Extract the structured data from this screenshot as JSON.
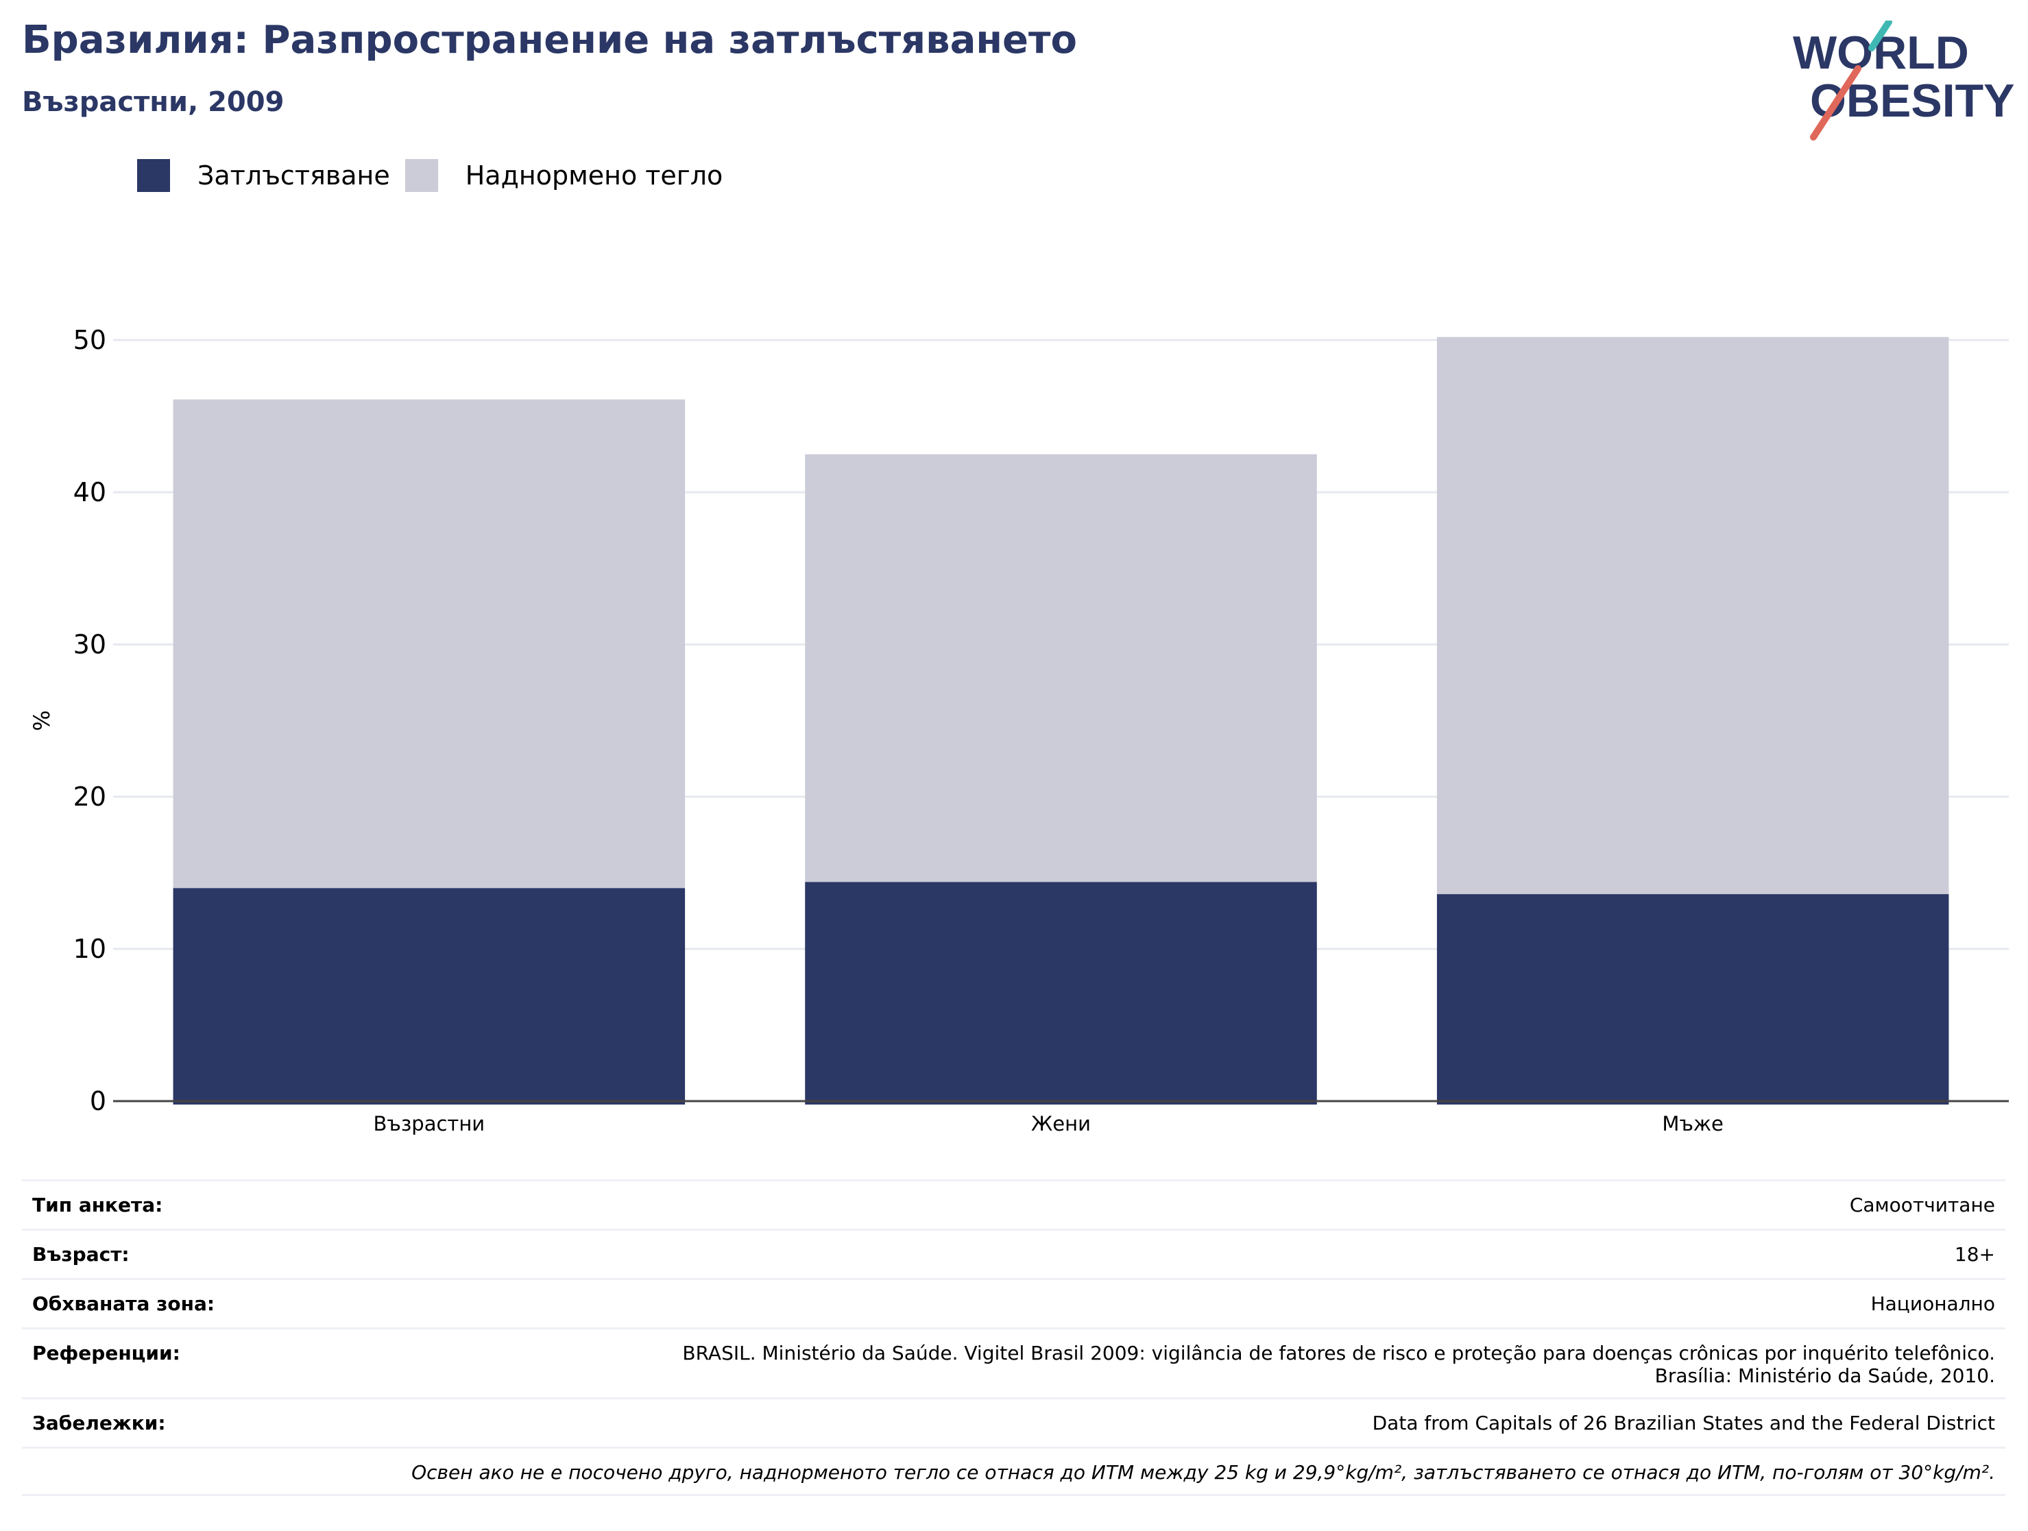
{
  "title": "Бразилия: Разпространение на затлъстяването",
  "subtitle": "Възрастни, 2009",
  "logo": {
    "line1": "WORLD",
    "line2": "OBESITY",
    "colors": {
      "text": "#2b3765",
      "teal": "#3fb8b4",
      "coral": "#e0685a"
    }
  },
  "legend": [
    {
      "label": "Затлъстяване",
      "color": "#2b3765"
    },
    {
      "label": "Наднормено тегло",
      "color": "#cbccd8"
    }
  ],
  "chart_data": {
    "type": "bar",
    "stacked": true,
    "categories": [
      "Възрастни",
      "Жени",
      "Мъже"
    ],
    "series": [
      {
        "name": "Затлъстяване",
        "color": "#2b3765",
        "values": [
          14.0,
          14.4,
          13.6
        ]
      },
      {
        "name": "Наднормено тегло",
        "color": "#cbccd8",
        "values": [
          32.1,
          28.1,
          36.6
        ]
      }
    ],
    "ylabel": "%",
    "ylim": [
      0,
      50
    ],
    "yticks": [
      0,
      10,
      20,
      30,
      40,
      50
    ],
    "grid": true
  },
  "meta": [
    {
      "label": "Тип анкета:",
      "value": [
        "Самоотчитане"
      ]
    },
    {
      "label": "Възраст:",
      "value": [
        "18+"
      ]
    },
    {
      "label": "Обхваната зона:",
      "value": [
        "Национално"
      ]
    },
    {
      "label": "Референции:",
      "value": [
        "BRASIL. Ministério da Saúde. Vigitel Brasil 2009: vigilância de fatores de risco e proteção para doenças crônicas por inquérito telefônico.",
        "Brasília: Ministério da Saúde, 2010."
      ]
    },
    {
      "label": "Забележки:",
      "value": [
        "Data from Capitals of 26 Brazilian States and the Federal District"
      ]
    }
  ],
  "note": "Освен ако не е посочено друго, наднорменото тегло се отнася до ИТМ между 25 kg и 29,9°kg/m², затлъстяването се отнася до ИТМ, по-голям от 30°kg/m²."
}
